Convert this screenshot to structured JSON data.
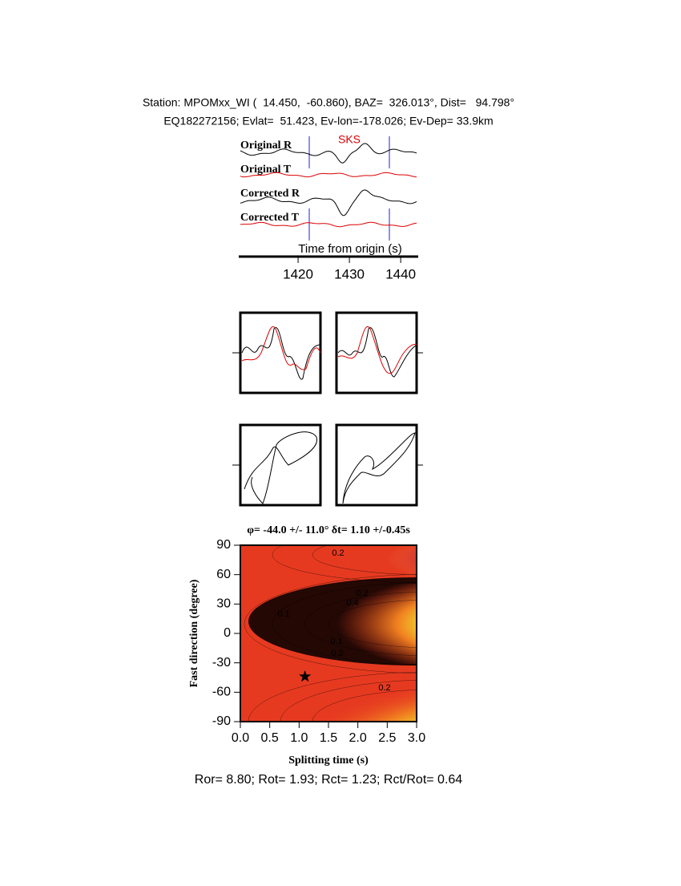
{
  "header": {
    "line1": "Station: MPOMxx_WI (  14.450,  -60.860), BAZ=  326.013°, Dist=   94.798°",
    "line2": "EQ182272156; Evlat=  51.423, Ev-lon=-178.026; Ev-Dep= 33.9km"
  },
  "seismograms": {
    "phase": "SKS",
    "traces": [
      "Original R",
      "Original T",
      "Corrected R",
      "Corrected T"
    ],
    "xlabel": "Time from origin (s)",
    "xlim": [
      1408.75,
      1443.1
    ],
    "xticks": [
      1420,
      1430,
      1440
    ]
  },
  "grid_search": {
    "title": "φ= -44.0 +/- 11.0° δt= 1.10 +/-0.45s",
    "xlabel": "Splitting time (s)",
    "ylabel": "Fast direction (degree)",
    "xlim": [
      0,
      3
    ],
    "ylim": [
      -90,
      90
    ],
    "xticks": [
      {
        "value": 0,
        "label": "0.0"
      },
      0.5,
      {
        "value": 1,
        "label": "1.0"
      },
      1.5,
      {
        "value": 2,
        "label": "2.0"
      },
      2.5,
      {
        "value": 3,
        "label": "3.0"
      }
    ],
    "yticks": [
      -90,
      -60,
      -30,
      0,
      30,
      60,
      90
    ],
    "best": {
      "x": 1.1,
      "y": -44.0
    },
    "contour_labels": [
      "0.2",
      "0.2",
      "0.1",
      "0.4",
      "0.1",
      "0.2",
      "0.2"
    ]
  },
  "footer": "Ror= 8.80; Rot= 1.93; Rct= 1.23; Rct/Rot= 0.64"
}
